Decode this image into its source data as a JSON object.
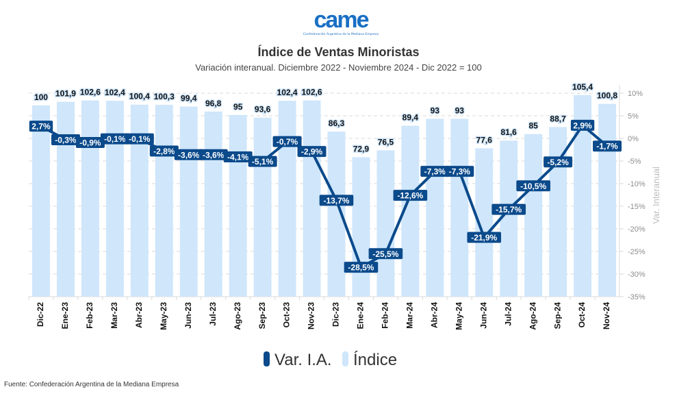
{
  "logo": {
    "mark": "came",
    "subtitle": "Confederación Argentina de la Mediana Empresa"
  },
  "title": "Índice de Ventas Minoristas",
  "subtitle": "Variación interanual. Diciembre 2022 - Noviembre 2024 - Dic 2022 = 100",
  "source": "Fuente: Confederación Argentina de la Mediana Empresa",
  "colors": {
    "line": "#0b4a8b",
    "bar": "#cfe6fb",
    "grid": "#d9d9d9",
    "axis_text": "#8c8c8c"
  },
  "chart_data": {
    "type": "bar+line",
    "categories": [
      "Dic-22",
      "Ene-23",
      "Feb-23",
      "Mar-23",
      "Abr-23",
      "May-23",
      "Jun-23",
      "Jul-23",
      "Ago-23",
      "Sep-23",
      "Oct-23",
      "Nov-23",
      "Dic-23",
      "Ene-24",
      "Feb-24",
      "Mar-24",
      "Abr-24",
      "May-24",
      "Jun-24",
      "Jul-24",
      "Ago-24",
      "Sep-24",
      "Oct-24",
      "Nov-24"
    ],
    "series": [
      {
        "name": "Índice",
        "type": "bar",
        "axis": "left-hidden",
        "values": [
          100,
          101.9,
          102.6,
          102.4,
          100.4,
          100.3,
          99.4,
          96.8,
          95,
          93.6,
          102.4,
          102.6,
          86.3,
          72.9,
          76.5,
          89.4,
          93,
          93,
          77.6,
          81.6,
          85,
          88.7,
          105.4,
          100.8
        ]
      },
      {
        "name": "Var. I.A.",
        "type": "line",
        "axis": "right",
        "values": [
          2.7,
          -0.3,
          -0.9,
          -0.1,
          -0.1,
          -2.8,
          -3.6,
          -3.6,
          -4.1,
          -5.1,
          -0.7,
          -2.9,
          -13.7,
          -28.5,
          -25.5,
          -12.6,
          -7.3,
          -7.3,
          -21.9,
          -15.7,
          -10.5,
          -5.2,
          2.9,
          -1.7
        ]
      }
    ],
    "bar_ylim": [
      0,
      106.4
    ],
    "y2label": "Var. Interanual",
    "y2lim": [
      -35,
      10
    ],
    "y2ticks": [
      10,
      5,
      0,
      -5,
      -10,
      -15,
      -20,
      -25,
      -30,
      -35
    ],
    "grid": true,
    "legend": {
      "placement": "bottom",
      "entries": [
        "Var. I.A.",
        "Índice"
      ]
    }
  }
}
